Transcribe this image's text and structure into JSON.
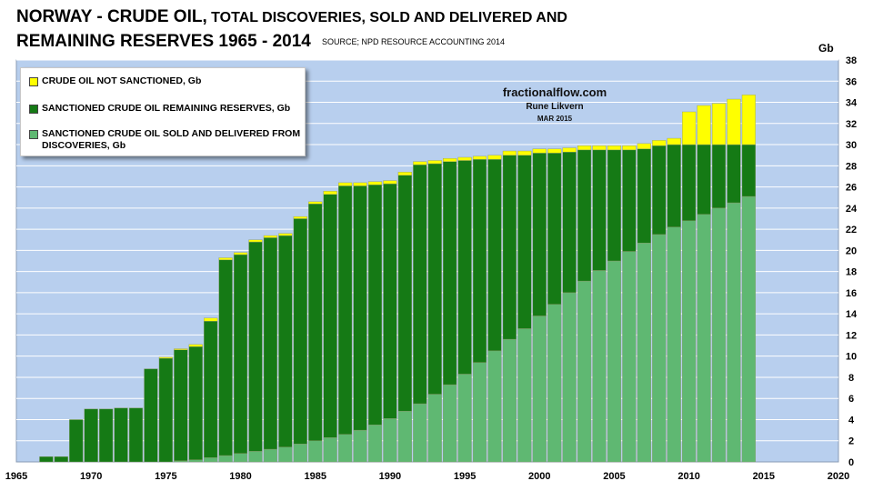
{
  "title": {
    "line1_big": "NORWAY - CRUDE OIL,",
    "line1_small": " TOTAL DISCOVERIES, SOLD AND DELIVERED AND",
    "line2_big": "REMAINING RESERVES    1965 - 2014"
  },
  "source": "SOURCE; NPD RESOURCE ACCOUNTING 2014",
  "unit": "Gb",
  "credit": {
    "site": "fractionalflow.com",
    "author": "Rune Likvern",
    "date": "MAR 2015"
  },
  "colors": {
    "plot_bg": "#b8cfee",
    "not_sanctioned": "#ffff00",
    "remaining": "#157a15",
    "sold": "#5fb872",
    "grid": "#ffffff"
  },
  "chart_data": {
    "type": "bar",
    "stacked": true,
    "grid": true,
    "legend_position": "top-left",
    "xlim": [
      1965,
      2020
    ],
    "ylim": [
      0,
      38
    ],
    "x_ticks": [
      1965,
      1970,
      1975,
      1980,
      1985,
      1990,
      1995,
      2000,
      2005,
      2010,
      2015,
      2020
    ],
    "y_ticks": [
      0,
      2,
      4,
      6,
      8,
      10,
      12,
      14,
      16,
      18,
      20,
      22,
      24,
      26,
      28,
      30,
      32,
      34,
      36,
      38
    ],
    "ylabel": "Gb",
    "x": [
      1967,
      1968,
      1969,
      1970,
      1971,
      1972,
      1973,
      1974,
      1975,
      1976,
      1977,
      1978,
      1979,
      1980,
      1981,
      1982,
      1983,
      1984,
      1985,
      1986,
      1987,
      1988,
      1989,
      1990,
      1991,
      1992,
      1993,
      1994,
      1995,
      1996,
      1997,
      1998,
      1999,
      2000,
      2001,
      2002,
      2003,
      2004,
      2005,
      2006,
      2007,
      2008,
      2009,
      2010,
      2011,
      2012,
      2013,
      2014
    ],
    "series": [
      {
        "name": "SANCTIONED CRUDE OIL SOLD AND DELIVERED FROM DISCOVERIES, Gb",
        "values": [
          0,
          0,
          0,
          0,
          0,
          0,
          0,
          0,
          0,
          0.1,
          0.2,
          0.4,
          0.6,
          0.8,
          1.0,
          1.2,
          1.4,
          1.7,
          2.0,
          2.3,
          2.6,
          3.0,
          3.5,
          4.1,
          4.8,
          5.5,
          6.4,
          7.3,
          8.3,
          9.4,
          10.5,
          11.6,
          12.6,
          13.8,
          14.9,
          16.0,
          17.1,
          18.1,
          19.0,
          19.9,
          20.7,
          21.5,
          22.2,
          22.8,
          23.4,
          24.0,
          24.5,
          25.1
        ]
      },
      {
        "name": "SANCTIONED CRUDE OIL REMAINING RESERVES, Gb",
        "values": [
          0.5,
          0.5,
          4.0,
          5.0,
          5.0,
          5.1,
          5.1,
          8.8,
          9.8,
          10.5,
          10.7,
          12.9,
          18.5,
          18.8,
          19.8,
          20.0,
          20.0,
          21.3,
          22.4,
          23.0,
          23.5,
          23.1,
          22.7,
          22.2,
          22.3,
          22.6,
          21.8,
          21.1,
          20.2,
          19.2,
          18.1,
          17.4,
          16.4,
          15.4,
          14.3,
          13.3,
          12.4,
          11.4,
          10.5,
          9.6,
          8.9,
          8.4,
          7.8,
          7.2,
          6.6,
          6.0,
          5.5,
          4.9
        ]
      },
      {
        "name": "CRUDE OIL NOT SANCTIONED, Gb",
        "values": [
          0,
          0,
          0,
          0,
          0,
          0,
          0,
          0,
          0.1,
          0.1,
          0.2,
          0.3,
          0.2,
          0.2,
          0.2,
          0.2,
          0.2,
          0.2,
          0.2,
          0.3,
          0.3,
          0.3,
          0.3,
          0.3,
          0.3,
          0.3,
          0.3,
          0.3,
          0.3,
          0.3,
          0.4,
          0.4,
          0.4,
          0.4,
          0.4,
          0.4,
          0.4,
          0.4,
          0.4,
          0.4,
          0.5,
          0.5,
          0.6,
          3.1,
          3.7,
          3.9,
          4.3,
          4.7
        ]
      }
    ]
  },
  "legend": [
    {
      "key": "not_sanctioned",
      "label": "CRUDE OIL NOT SANCTIONED, Gb"
    },
    {
      "key": "remaining",
      "label": "SANCTIONED CRUDE OIL REMAINING RESERVES, Gb"
    },
    {
      "key": "sold",
      "label": "SANCTIONED CRUDE OIL SOLD AND DELIVERED FROM DISCOVERIES, Gb"
    }
  ]
}
